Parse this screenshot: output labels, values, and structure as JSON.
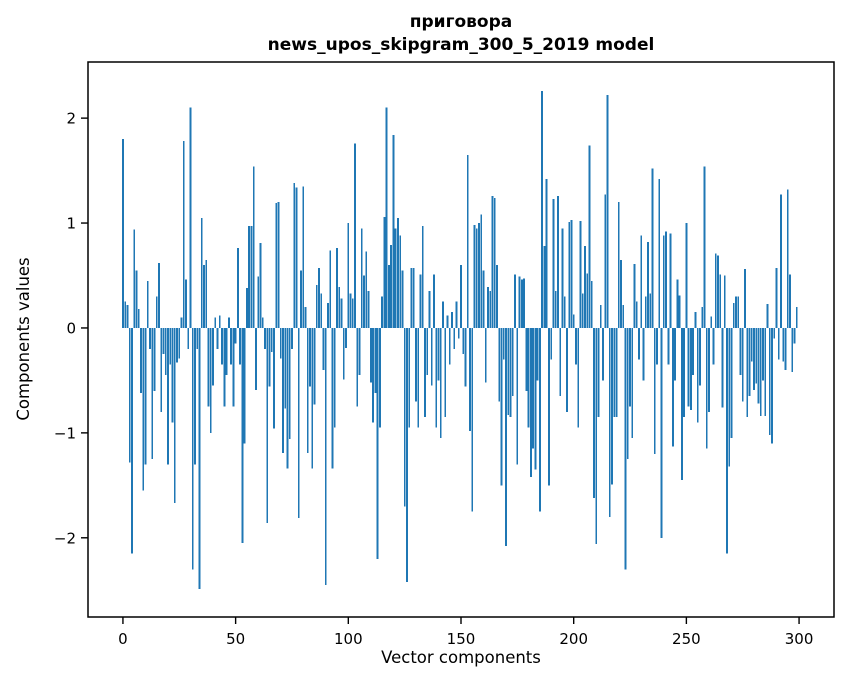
{
  "figure": {
    "background": "#ffffff"
  },
  "chart_data": {
    "type": "bar",
    "title_line1": "приговора",
    "title_line2": "news_upos_skipgram_300_5_2019 model",
    "xlabel": "Vector components",
    "ylabel": "Components values",
    "bar_color": "#1f77b4",
    "axis_color": "#000000",
    "xticks": [
      0,
      50,
      100,
      150,
      200,
      250,
      300
    ],
    "yticks": [
      2,
      1,
      0,
      -1,
      -2
    ],
    "xlim": [
      -15.5,
      315.5
    ],
    "ylim": [
      -2.755,
      2.535
    ],
    "grid": false,
    "legend": null,
    "n_components": 300,
    "values": [
      1.8,
      0.25,
      0.22,
      -1.28,
      -2.15,
      0.94,
      0.55,
      0.18,
      -0.62,
      -1.55,
      -1.3,
      0.45,
      -0.2,
      -1.25,
      -0.6,
      0.3,
      0.62,
      -0.8,
      -0.25,
      -0.45,
      -1.3,
      -0.35,
      -0.9,
      -1.67,
      -0.33,
      -0.29,
      0.1,
      1.78,
      0.46,
      -0.2,
      2.1,
      -2.3,
      -1.3,
      -0.2,
      -2.49,
      1.05,
      0.6,
      0.65,
      -0.75,
      -1.0,
      -0.55,
      0.1,
      -0.2,
      0.12,
      -0.35,
      -0.75,
      -0.45,
      0.1,
      -0.35,
      -0.75,
      -0.15,
      0.76,
      -0.35,
      -2.05,
      -1.1,
      0.38,
      0.97,
      0.97,
      1.54,
      -0.59,
      0.49,
      0.81,
      0.1,
      -0.2,
      -1.86,
      -0.56,
      -0.23,
      -0.96,
      1.19,
      1.2,
      -0.29,
      -1.19,
      -0.77,
      -1.34,
      -1.06,
      -0.2,
      1.38,
      1.34,
      -1.81,
      0.55,
      1.35,
      0.2,
      -1.19,
      -0.56,
      -1.34,
      -0.73,
      0.41,
      0.57,
      0.33,
      -0.4,
      -2.45,
      0.24,
      0.74,
      -1.34,
      -0.95,
      0.76,
      0.39,
      0.28,
      -0.49,
      -0.19,
      1.0,
      0.33,
      0.28,
      1.76,
      -0.75,
      -0.45,
      0.95,
      0.5,
      0.73,
      0.35,
      -0.52,
      -0.9,
      -0.62,
      -2.2,
      -0.95,
      0.3,
      1.06,
      2.1,
      0.6,
      0.79,
      1.84,
      0.95,
      1.05,
      0.88,
      0.55,
      -1.7,
      -2.42,
      -0.95,
      0.57,
      0.57,
      -0.7,
      -0.95,
      0.51,
      0.97,
      -0.85,
      -0.45,
      0.35,
      -0.55,
      0.51,
      -0.95,
      -0.5,
      -1.05,
      0.25,
      -0.85,
      0.12,
      -0.35,
      0.15,
      -0.2,
      0.25,
      -0.1,
      0.6,
      -0.25,
      -0.56,
      1.65,
      -0.98,
      -1.75,
      0.98,
      0.95,
      1.0,
      1.08,
      0.55,
      -0.52,
      0.39,
      0.35,
      1.26,
      1.24,
      0.6,
      -0.7,
      -1.5,
      -0.3,
      -2.08,
      -0.83,
      -0.85,
      -0.65,
      0.51,
      -1.3,
      0.49,
      0.46,
      0.47,
      -0.6,
      -0.95,
      -1.42,
      -1.15,
      -1.35,
      -0.5,
      -1.75,
      2.26,
      0.78,
      1.42,
      -1.5,
      -0.3,
      1.23,
      0.35,
      1.26,
      -0.65,
      0.95,
      0.3,
      -0.8,
      1.01,
      1.03,
      0.13,
      -0.35,
      -0.95,
      1.02,
      0.33,
      0.78,
      0.52,
      1.74,
      0.45,
      -1.62,
      -2.06,
      -0.85,
      0.22,
      -0.5,
      1.27,
      2.22,
      -1.8,
      -1.49,
      -0.85,
      -0.85,
      1.2,
      0.65,
      0.22,
      -2.3,
      -1.25,
      -0.75,
      -1.05,
      0.61,
      0.25,
      -0.3,
      0.88,
      -0.5,
      0.3,
      0.82,
      0.33,
      1.52,
      -1.2,
      -0.35,
      1.42,
      -2.0,
      0.88,
      0.92,
      -0.35,
      0.9,
      -1.13,
      -0.5,
      0.46,
      0.31,
      -1.45,
      -0.85,
      1.0,
      -0.75,
      -0.78,
      -0.45,
      0.15,
      -0.9,
      -0.55,
      0.2,
      1.54,
      -1.15,
      -0.8,
      0.11,
      -0.35,
      0.71,
      0.69,
      0.51,
      -0.76,
      0.5,
      -2.15,
      -1.32,
      -1.05,
      0.24,
      0.3,
      0.3,
      -0.45,
      -0.7,
      0.56,
      -0.85,
      -0.65,
      -0.32,
      -0.59,
      -0.53,
      -0.72,
      -0.84,
      -0.5,
      -0.84,
      0.23,
      -1.02,
      -1.1,
      -0.1,
      0.57,
      -0.3,
      1.27,
      -0.32,
      -0.4,
      1.32,
      0.51,
      -0.42,
      -0.15,
      0.2
    ]
  }
}
